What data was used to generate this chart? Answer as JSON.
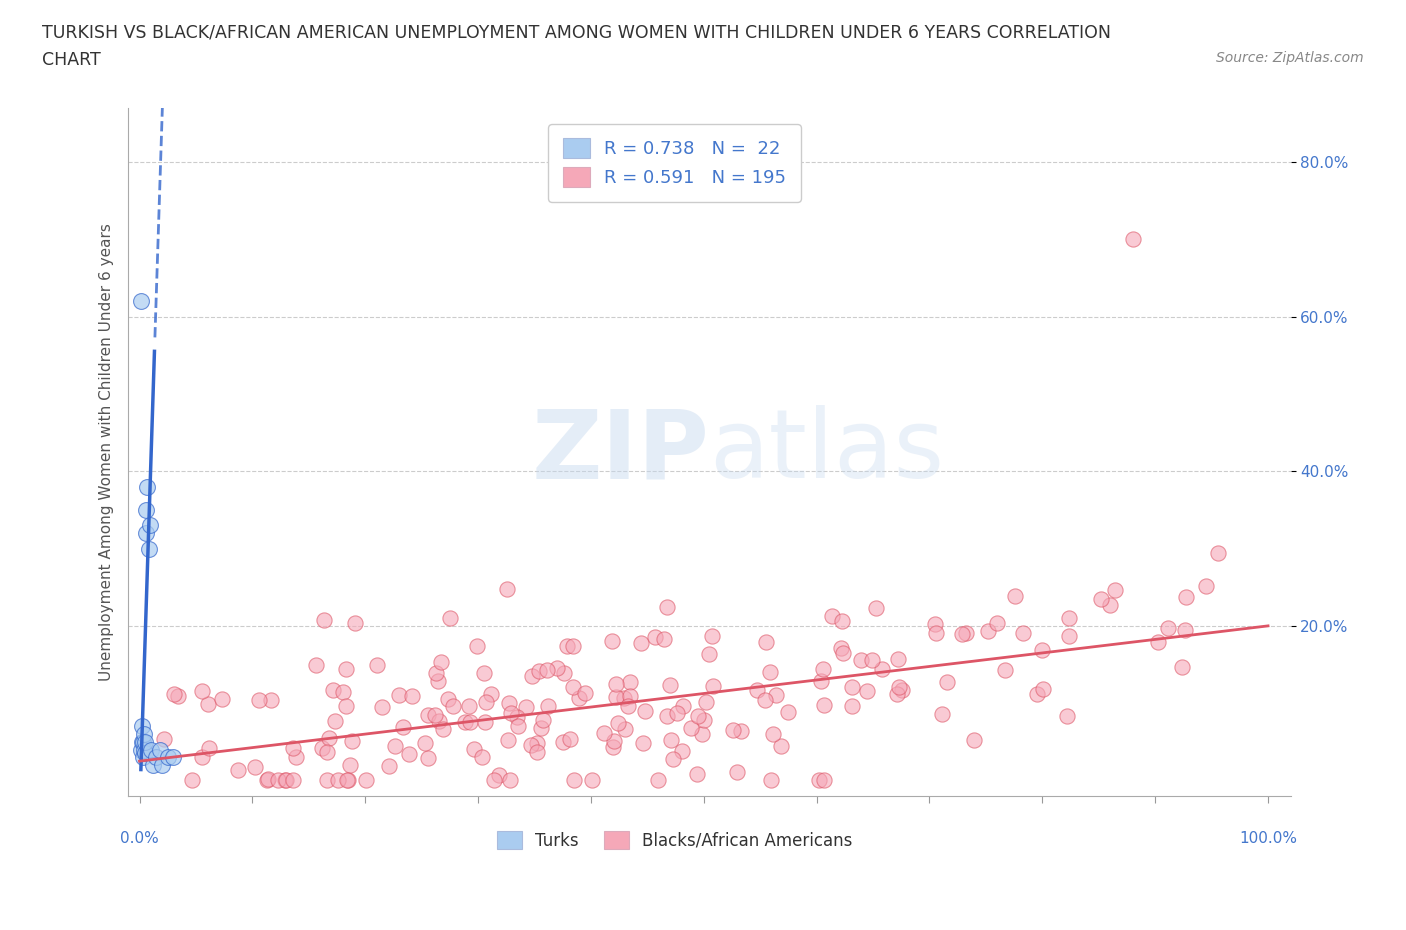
{
  "title_line1": "TURKISH VS BLACK/AFRICAN AMERICAN UNEMPLOYMENT AMONG WOMEN WITH CHILDREN UNDER 6 YEARS CORRELATION",
  "title_line2": "CHART",
  "source": "Source: ZipAtlas.com",
  "ylabel": "Unemployment Among Women with Children Under 6 years",
  "legend1_label": "R = 0.738   N =  22",
  "legend2_label": "R = 0.591   N = 195",
  "turks_color": "#aaccf0",
  "blacks_color": "#f5a8b8",
  "turks_line_color": "#3366cc",
  "blacks_line_color": "#dd5566",
  "turks_R": 0.738,
  "turks_N": 22,
  "blacks_R": 0.591,
  "blacks_N": 195,
  "watermark_text": "ZIPatlas",
  "xlim": [
    0.0,
    1.0
  ],
  "ylim": [
    0.0,
    0.85
  ],
  "background_color": "#ffffff",
  "grid_color": "#cccccc",
  "title_color": "#333333",
  "axis_label_color": "#555555",
  "tick_color": "#4477cc",
  "turks_x": [
    0.001,
    0.001,
    0.002,
    0.002,
    0.003,
    0.003,
    0.004,
    0.004,
    0.005,
    0.005,
    0.006,
    0.006,
    0.007,
    0.008,
    0.009,
    0.01,
    0.012,
    0.015,
    0.018,
    0.02,
    0.025,
    0.03
  ],
  "turks_y": [
    0.62,
    0.04,
    0.05,
    0.07,
    0.03,
    0.05,
    0.04,
    0.06,
    0.035,
    0.05,
    0.32,
    0.35,
    0.38,
    0.3,
    0.33,
    0.04,
    0.02,
    0.03,
    0.04,
    0.02,
    0.03,
    0.03
  ],
  "turks_line_x0": 0.0,
  "turks_line_x1": 0.12,
  "turks_slope": 45.0,
  "turks_intercept": -0.04,
  "blacks_slope": 0.175,
  "blacks_intercept": 0.025,
  "blacks_seed": 42
}
